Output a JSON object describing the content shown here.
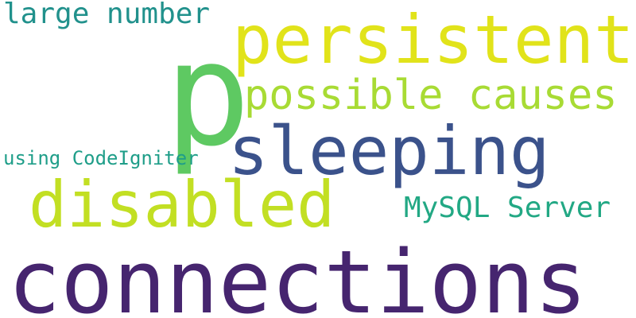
{
  "words": [
    {
      "id": "connections",
      "text": "connections",
      "color": "#46256f"
    },
    {
      "id": "p",
      "text": "p",
      "color": "#5ec962"
    },
    {
      "id": "persistent",
      "text": "persistent",
      "color": "#e1e31a"
    },
    {
      "id": "sleeping",
      "text": "sleeping",
      "color": "#3b528b"
    },
    {
      "id": "disabled",
      "text": "disabled",
      "color": "#c2df23"
    },
    {
      "id": "possible",
      "text": "possible causes",
      "color": "#a8db34"
    },
    {
      "id": "large",
      "text": "large number",
      "color": "#21918c"
    },
    {
      "id": "mysql",
      "text": "MySQL Server",
      "color": "#22a884"
    },
    {
      "id": "codeigniter",
      "text": "using CodeIgniter",
      "color": "#1f9e89"
    }
  ]
}
